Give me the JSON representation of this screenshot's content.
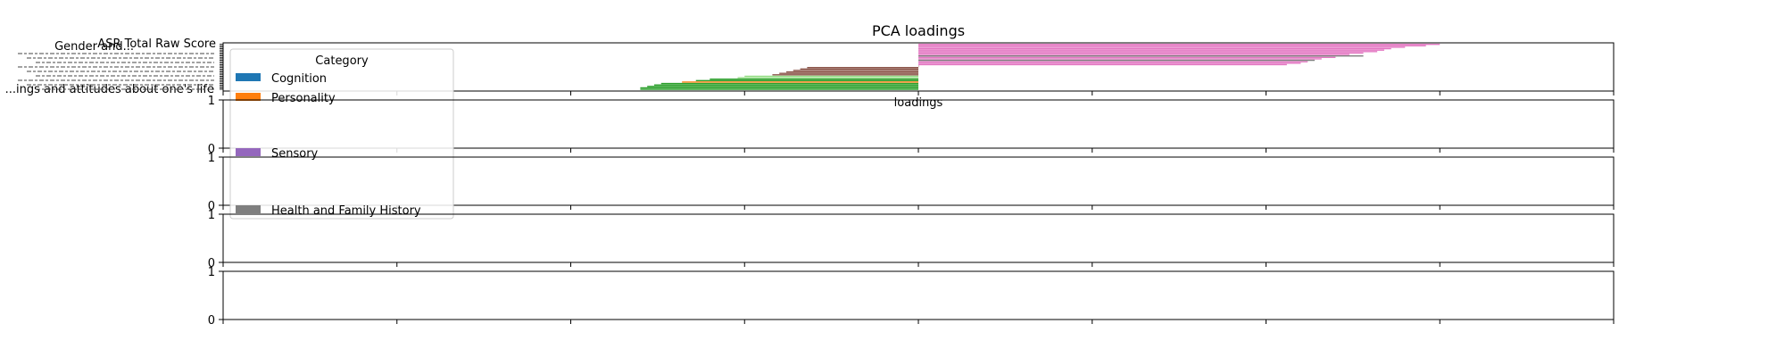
{
  "chart_data": {
    "type": "bar",
    "orientation": "horizontal",
    "title": "PCA loadings",
    "xlabel": "loadings",
    "ylabel": "",
    "xlim": [
      -1,
      1
    ],
    "grid": false,
    "legend": {
      "title": "Category",
      "placement": "upper-left",
      "entries": [
        {
          "label": "Cognition",
          "color": "#1f77b4"
        },
        {
          "label": "Personality",
          "color": "#ff7f0e"
        },
        {
          "label": "Sensory",
          "color": "#9467bd"
        },
        {
          "label": "Health and Family History",
          "color": "#7f7f7f"
        }
      ]
    },
    "tick_labels_legible": [
      "ASR Total Raw Score",
      "Gender and...",
      "...ings and attitudes about one's life"
    ],
    "bars": [
      {
        "value": 0.75,
        "color": "#e377c2"
      },
      {
        "value": 0.73,
        "color": "#e377c2"
      },
      {
        "value": 0.7,
        "color": "#e377c2"
      },
      {
        "value": 0.68,
        "color": "#e377c2"
      },
      {
        "value": 0.67,
        "color": "#e377c2"
      },
      {
        "value": 0.66,
        "color": "#e377c2"
      },
      {
        "value": 0.64,
        "color": "#e377c2"
      },
      {
        "value": 0.62,
        "color": "#e377c2"
      },
      {
        "value": 0.64,
        "color": "#7f7f7f"
      },
      {
        "value": 0.6,
        "color": "#e377c2"
      },
      {
        "value": 0.58,
        "color": "#e377c2"
      },
      {
        "value": 0.57,
        "color": "#7f7f7f"
      },
      {
        "value": 0.56,
        "color": "#e377c2"
      },
      {
        "value": 0.55,
        "color": "#e377c2"
      },
      {
        "value": 0.53,
        "color": "#e377c2"
      },
      {
        "value": 0.0,
        "color": "#8c564b"
      },
      {
        "value": -0.16,
        "color": "#8c564b"
      },
      {
        "value": -0.17,
        "color": "#8c564b"
      },
      {
        "value": -0.18,
        "color": "#8c564b"
      },
      {
        "value": -0.19,
        "color": "#8c564b"
      },
      {
        "value": -0.2,
        "color": "#8c564b"
      },
      {
        "value": -0.21,
        "color": "#8c564b"
      },
      {
        "value": -0.25,
        "color": "#98df8a"
      },
      {
        "value": -0.26,
        "color": "#98df8a"
      },
      {
        "value": -0.3,
        "color": "#2ca02c"
      },
      {
        "value": -0.32,
        "color": "#2ca02c"
      },
      {
        "value": -0.34,
        "color": "#ff7f0e"
      },
      {
        "value": -0.37,
        "color": "#2ca02c"
      },
      {
        "value": -0.38,
        "color": "#2ca02c"
      },
      {
        "value": -0.39,
        "color": "#2ca02c"
      },
      {
        "value": -0.4,
        "color": "#2ca02c"
      },
      {
        "value": -0.4,
        "color": "#2ca02c"
      }
    ],
    "empty_subplots": [
      {
        "ylim": [
          0,
          1
        ],
        "yticks": [
          "0",
          "1"
        ]
      },
      {
        "ylim": [
          0,
          1
        ],
        "yticks": [
          "0",
          "1"
        ]
      },
      {
        "ylim": [
          0,
          1
        ],
        "yticks": [
          "0",
          "1"
        ]
      },
      {
        "ylim": [
          0,
          1
        ],
        "yticks": [
          "0",
          "1"
        ]
      }
    ]
  }
}
